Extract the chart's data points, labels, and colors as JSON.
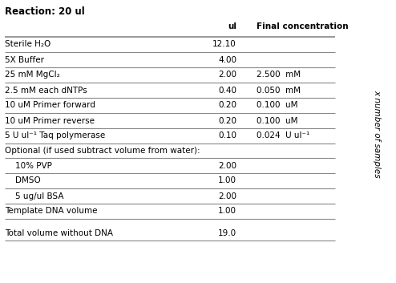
{
  "title": "Reaction: 20 ul",
  "rows": [
    {
      "component": "Sterile H₂O",
      "ul": "12.10",
      "conc": ""
    },
    {
      "component": "5X Buffer",
      "ul": "4.00",
      "conc": ""
    },
    {
      "component": "25 mM MgCl₂",
      "ul": "2.00",
      "conc": "2.500  mM"
    },
    {
      "component": "2.5 mM each dNTPs",
      "ul": "0.40",
      "conc": "0.050  mM"
    },
    {
      "component": "10 uM Primer forward",
      "ul": "0.20",
      "conc": "0.100  uM"
    },
    {
      "component": "10 uM Primer reverse",
      "ul": "0.20",
      "conc": "0.100  uM"
    },
    {
      "component": "5 U ul⁻¹ Taq polymerase",
      "ul": "0.10",
      "conc": "0.024  U ul⁻¹"
    },
    {
      "component": "Optional (if used subtract volume from water):",
      "ul": "",
      "conc": "",
      "span": true
    },
    {
      "component": "    10% PVP",
      "ul": "2.00",
      "conc": "",
      "indent": true
    },
    {
      "component": "    DMSO",
      "ul": "1.00",
      "conc": "",
      "indent": true
    },
    {
      "component": "    5 ug/ul BSA",
      "ul": "2.00",
      "conc": "",
      "indent": true
    },
    {
      "component": "Template DNA volume",
      "ul": "1.00",
      "conc": ""
    },
    {
      "component": "Total volume without DNA",
      "ul": "19.0",
      "conc": "",
      "last": true
    }
  ],
  "side_label": "x number of samples",
  "bg_color": "#ffffff",
  "text_color": "#000000",
  "line_color": "#888888",
  "font_size": 7.5,
  "header_font_size": 7.5,
  "fig_width": 4.94,
  "fig_height": 3.53,
  "dpi": 100
}
